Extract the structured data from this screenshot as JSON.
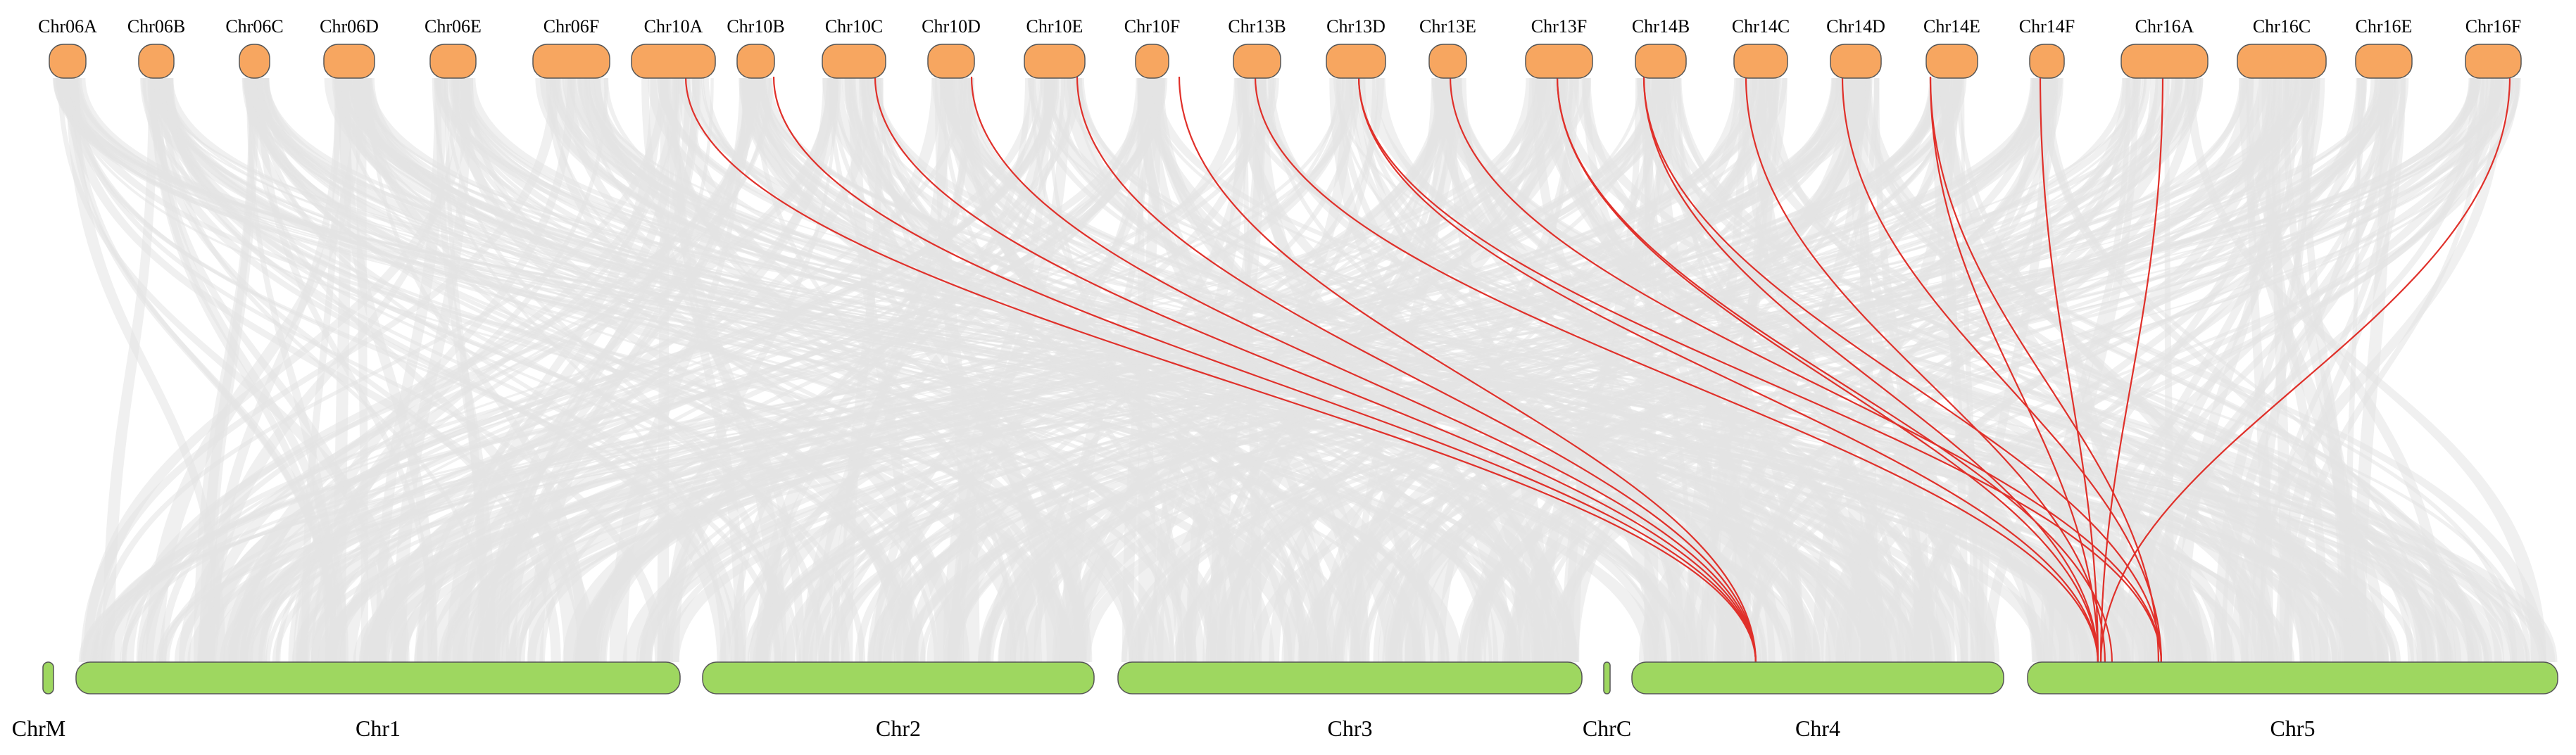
{
  "top_row": {
    "chromosomes": [
      "Chr06A",
      "Chr06B",
      "Chr06C",
      "Chr06D",
      "Chr06E",
      "Chr06F",
      "Chr10A",
      "Chr10B",
      "Chr10C",
      "Chr10D",
      "Chr10E",
      "Chr10F",
      "Chr13B",
      "Chr13D",
      "Chr13E",
      "Chr13F",
      "Chr14B",
      "Chr14C",
      "Chr14D",
      "Chr14E",
      "Chr14F",
      "Chr16A",
      "Chr16C",
      "Chr16E",
      "Chr16F"
    ],
    "color": "#F7A660"
  },
  "bottom_row": {
    "chromosomes": [
      "ChrM",
      "Chr1",
      "Chr2",
      "Chr3",
      "ChrC",
      "Chr4",
      "Chr5"
    ],
    "color": "#9ED760"
  },
  "colors": {
    "background_links": "#E4E4E4",
    "highlight_links": "#E0302A",
    "outline": "#555555"
  },
  "highlighted_links": [
    {
      "from": "Chr10A",
      "to": "Chr4"
    },
    {
      "from": "Chr10B",
      "to": "Chr4"
    },
    {
      "from": "Chr10C",
      "to": "Chr4"
    },
    {
      "from": "Chr10D",
      "to": "Chr4"
    },
    {
      "from": "Chr10E",
      "to": "Chr4"
    },
    {
      "from": "Chr10F",
      "to": "Chr4"
    },
    {
      "from": "Chr13B",
      "to": "Chr5"
    },
    {
      "from": "Chr13D",
      "to": "Chr5"
    },
    {
      "from": "Chr13D",
      "to": "Chr5"
    },
    {
      "from": "Chr13E",
      "to": "Chr5"
    },
    {
      "from": "Chr13F",
      "to": "Chr5"
    },
    {
      "from": "Chr13F",
      "to": "Chr5"
    },
    {
      "from": "Chr14B",
      "to": "Chr5"
    },
    {
      "from": "Chr14B",
      "to": "Chr5"
    },
    {
      "from": "Chr14C",
      "to": "Chr5"
    },
    {
      "from": "Chr14D",
      "to": "Chr5"
    },
    {
      "from": "Chr14E",
      "to": "Chr5"
    },
    {
      "from": "Chr14E",
      "to": "Chr5"
    },
    {
      "from": "Chr14F",
      "to": "Chr5"
    },
    {
      "from": "Chr16A",
      "to": "Chr5"
    },
    {
      "from": "Chr16F",
      "to": "Chr5"
    }
  ]
}
